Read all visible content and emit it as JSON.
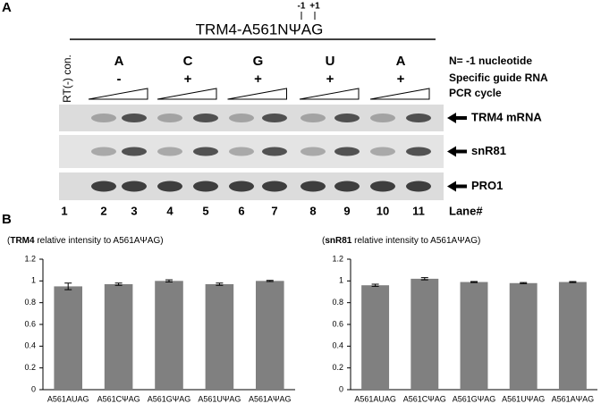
{
  "panel_a": {
    "label": "A",
    "construct": "TRM4-A561NΨAG",
    "positions": [
      "-1",
      "+1"
    ],
    "control": "RT(-) con.",
    "nucleotides": [
      "A",
      "C",
      "G",
      "U",
      "A"
    ],
    "guide_signs": [
      "-",
      "+",
      "+",
      "+",
      "+"
    ],
    "row_labels": [
      "N= -1 nucleotide",
      "Specific guide RNA",
      "PCR cycle"
    ],
    "bands": [
      "TRM4 mRNA",
      "snR81",
      "PRO1"
    ],
    "lanes": [
      "1",
      "2",
      "3",
      "4",
      "5",
      "6",
      "7",
      "8",
      "9",
      "10",
      "11"
    ],
    "lane_label": "Lane#"
  },
  "panel_b_label": "B",
  "chart_data": [
    {
      "type": "bar",
      "title_parts": [
        "(",
        "TRM4",
        " relative intensity to A561AΨAG)"
      ],
      "categories": [
        "A561AUAG",
        "A561CΨAG",
        "A561GΨAG",
        "A561UΨAG",
        "A561AΨAG"
      ],
      "values": [
        0.95,
        0.97,
        1.0,
        0.97,
        1.0
      ],
      "errors": [
        0.03,
        0.01,
        0.01,
        0.01,
        0.005
      ],
      "color": "#808080",
      "ylim": [
        0,
        1.2
      ],
      "yticks": [
        0,
        0.2,
        0.4,
        0.6,
        0.8,
        1,
        1.2
      ]
    },
    {
      "type": "bar",
      "title_parts": [
        "(",
        "snR81",
        " relative intensity to A561AΨAG)"
      ],
      "categories": [
        "A561AUAG",
        "A561CΨAG",
        "A561GΨAG",
        "A561UΨAG",
        "A561AΨAG"
      ],
      "values": [
        0.96,
        1.02,
        0.99,
        0.98,
        0.99
      ],
      "errors": [
        0.01,
        0.01,
        0.005,
        0.005,
        0.005
      ],
      "color": "#808080",
      "ylim": [
        0,
        1.2
      ],
      "yticks": [
        0,
        0.2,
        0.4,
        0.6,
        0.8,
        1,
        1.2
      ]
    }
  ]
}
